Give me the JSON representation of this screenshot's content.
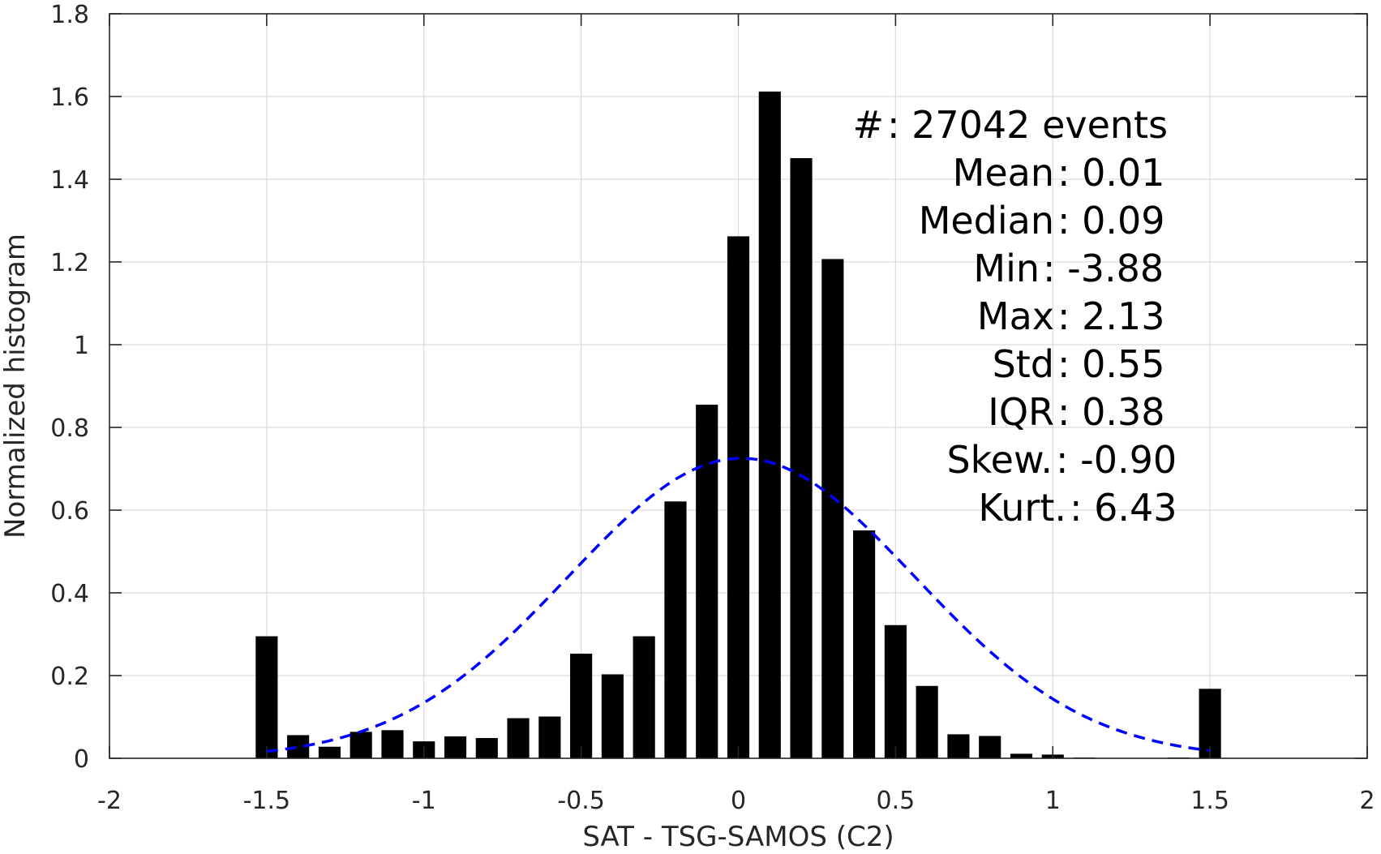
{
  "chart_data": {
    "type": "bar",
    "xlabel": "SAT - TSG-SAMOS (C2)",
    "ylabel": "Normalized histogram",
    "xlim": [
      -2,
      2
    ],
    "ylim": [
      0,
      1.8
    ],
    "xticks": [
      -2,
      -1.5,
      -1,
      -0.5,
      0,
      0.5,
      1,
      1.5,
      2
    ],
    "xtick_labels": [
      "-2",
      "-1.5",
      "-1",
      "-0.5",
      "0",
      "0.5",
      "1",
      "1.5",
      "2"
    ],
    "yticks": [
      0,
      0.2,
      0.4,
      0.6,
      0.8,
      1,
      1.2,
      1.4,
      1.6,
      1.8
    ],
    "ytick_labels": [
      "0",
      "0.2",
      "0.4",
      "0.6",
      "0.8",
      "1",
      "1.2",
      "1.4",
      "1.6",
      "1.8"
    ],
    "grid": true,
    "bar_width": 0.07,
    "bar_color": "#000000",
    "bars": {
      "x": [
        -1.5,
        -1.4,
        -1.3,
        -1.2,
        -1.1,
        -1.0,
        -0.9,
        -0.8,
        -0.7,
        -0.6,
        -0.5,
        -0.4,
        -0.3,
        -0.2,
        -0.1,
        0.0,
        0.1,
        0.2,
        0.3,
        0.4,
        0.5,
        0.6,
        0.7,
        0.8,
        0.9,
        1.0,
        1.1,
        1.2,
        1.3,
        1.4,
        1.5
      ],
      "values": [
        0.295,
        0.056,
        0.028,
        0.064,
        0.068,
        0.041,
        0.053,
        0.049,
        0.097,
        0.101,
        0.253,
        0.203,
        0.295,
        0.621,
        0.855,
        1.262,
        1.612,
        1.451,
        1.207,
        0.551,
        0.322,
        0.175,
        0.058,
        0.054,
        0.011,
        0.009,
        0.002,
        0.001,
        0.001,
        0.002,
        0.168
      ]
    },
    "fit_curve": {
      "type": "normal",
      "mean": 0.01,
      "std": 0.55,
      "x_range": [
        -1.5,
        1.5
      ],
      "color": "#0000ff",
      "style": "dashed"
    },
    "annotations": [
      {
        "label": "#  ",
        "value": ": 27042 events"
      },
      {
        "label": "Mean ",
        "value": ": 0.01"
      },
      {
        "label": "Median ",
        "value": ": 0.09"
      },
      {
        "label": "Min ",
        "value": ": -3.88"
      },
      {
        "label": "Max ",
        "value": ": 2.13"
      },
      {
        "label": "Std ",
        "value": ": 0.55"
      },
      {
        "label": "IQR ",
        "value": ": 0.38"
      },
      {
        "label": "Skew. ",
        "value": ": -0.90"
      },
      {
        "label": "Kurt. ",
        "value": ": 6.43"
      }
    ]
  }
}
